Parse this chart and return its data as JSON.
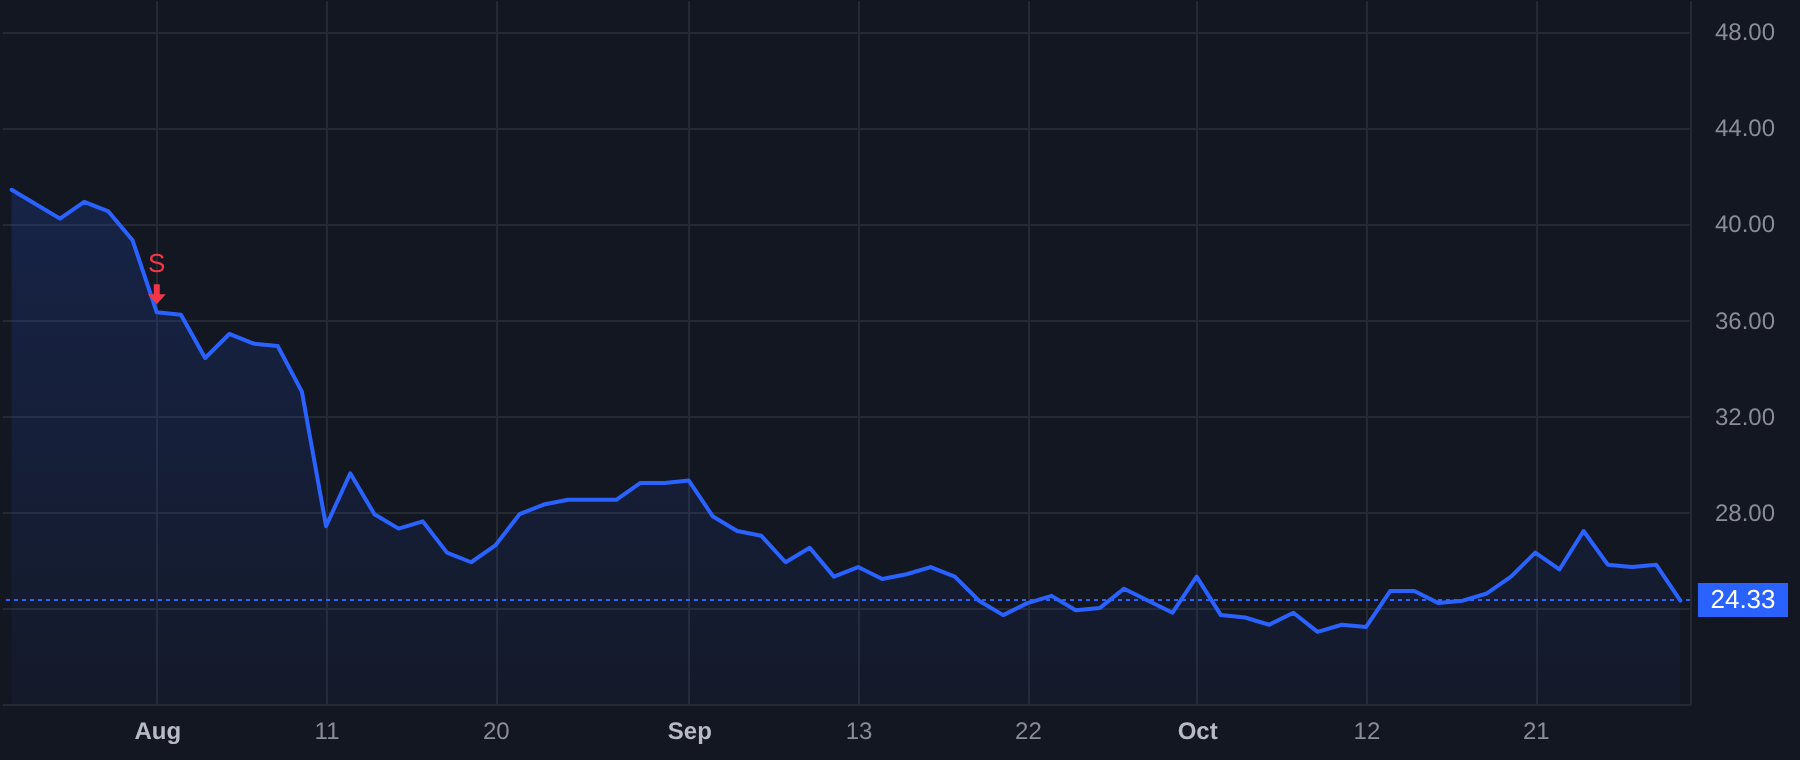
{
  "chart_data": {
    "type": "area",
    "categories": [
      null,
      null,
      null,
      null,
      null,
      null,
      "Aug",
      null,
      null,
      null,
      null,
      null,
      null,
      "11",
      null,
      null,
      null,
      null,
      null,
      null,
      "20",
      null,
      null,
      null,
      null,
      null,
      null,
      null,
      "Sep",
      null,
      null,
      null,
      null,
      null,
      null,
      "13",
      null,
      null,
      null,
      null,
      null,
      null,
      "22",
      null,
      null,
      null,
      null,
      null,
      null,
      "Oct",
      null,
      null,
      null,
      null,
      null,
      null,
      "12",
      null,
      null,
      null,
      null,
      null,
      null,
      "21",
      null,
      null,
      null,
      null,
      null,
      null
    ],
    "series": [
      {
        "color": "#2962ff",
        "values": [
          41.4,
          40.8,
          40.2,
          40.9,
          40.5,
          39.3,
          36.3,
          36.2,
          34.4,
          35.4,
          35.0,
          34.9,
          33.0,
          27.4,
          29.6,
          27.9,
          27.3,
          27.6,
          26.3,
          25.9,
          26.6,
          27.9,
          28.3,
          28.5,
          28.5,
          28.5,
          29.2,
          29.2,
          29.3,
          27.8,
          27.2,
          27.0,
          25.9,
          26.5,
          25.3,
          25.7,
          25.2,
          25.4,
          25.7,
          25.3,
          24.3,
          23.7,
          24.2,
          24.5,
          23.9,
          24.0,
          24.8,
          24.3,
          23.8,
          25.3,
          23.7,
          23.6,
          23.3,
          23.8,
          23.0,
          23.3,
          23.2,
          24.7,
          24.7,
          24.2,
          24.3,
          24.6,
          25.3,
          26.3,
          25.6,
          27.2,
          25.8,
          25.7,
          25.8,
          24.3
        ]
      }
    ],
    "ylim": [
      20,
      49.3
    ],
    "yticks": [
      {
        "value": 24,
        "label": null
      },
      {
        "value": 28,
        "label": "28.00"
      },
      {
        "value": 32,
        "label": "32.00"
      },
      {
        "value": 36,
        "label": "36.00"
      },
      {
        "value": 40,
        "label": "40.00"
      },
      {
        "value": 44,
        "label": "44.00"
      },
      {
        "value": 48,
        "label": "48.00"
      }
    ],
    "grid": true,
    "ref_lines": [
      {
        "axis": "y",
        "value": 24.33,
        "label": "24.33",
        "color": "#2962ff",
        "line_style": "dotted"
      }
    ],
    "annotations": [
      {
        "text": "S",
        "x": "Aug",
        "y": 36.3
      }
    ]
  }
}
